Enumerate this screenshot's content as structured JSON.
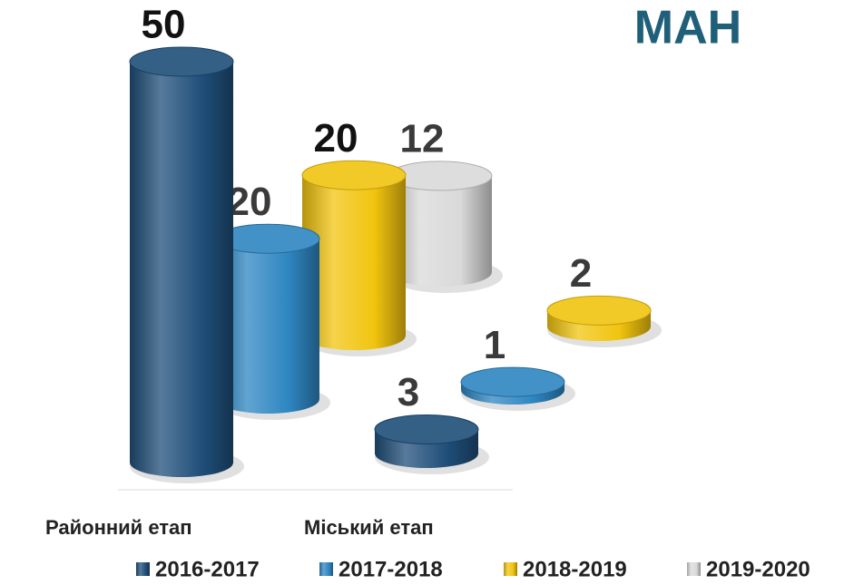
{
  "chart_data": {
    "type": "bar3d",
    "title": "МАН",
    "categories": [
      "Районний етап",
      "Міський етап"
    ],
    "series": [
      {
        "name": "2016-2017",
        "color": "#1f4e79",
        "values": [
          50,
          3
        ]
      },
      {
        "name": "2017-2018",
        "color": "#2e86c1",
        "values": [
          20,
          1
        ]
      },
      {
        "name": "2018-2019",
        "color": "#f1c40f",
        "values": [
          20,
          2
        ]
      },
      {
        "name": "2019-2020",
        "color": "#d9d9d9",
        "values": [
          12,
          null
        ]
      }
    ]
  }
}
